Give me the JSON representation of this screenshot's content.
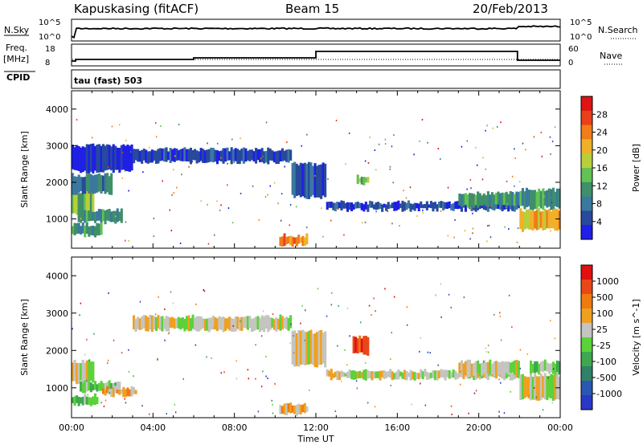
{
  "header": {
    "station": "Kapuskasing (fitACF)",
    "beam": "Beam 15",
    "date": "20/Feb/2013"
  },
  "panels": {
    "sky_label": "N.Sky",
    "sky_ticks": [
      "10^5",
      "10^0"
    ],
    "search_label": "N.Search",
    "search_ticks": [
      "10^5",
      "10^0"
    ],
    "freq_label_1": "Freq.",
    "freq_label_2": "[MHz]",
    "freq_ticks": [
      "18",
      "8"
    ],
    "nave_label": "Nave",
    "nave_ticks": [
      "60",
      "0"
    ],
    "cpid_label": "CPID",
    "cpid_value": "tau (fast) 503"
  },
  "colors": {
    "power": [
      "#1f1fe6",
      "#274a9c",
      "#3a78a0",
      "#3e8f6a",
      "#62c254",
      "#b8cf3c",
      "#f0b02a",
      "#f07d18",
      "#e8401a",
      "#dd1414"
    ],
    "velocity": [
      "#2a38c8",
      "#2958b0",
      "#30806a",
      "#3fa84e",
      "#5bd23a",
      "#c4c4c0",
      "#f0a020",
      "#ee7a10",
      "#e84818",
      "#e01010"
    ]
  },
  "chart_data": [
    {
      "type": "heatmap",
      "name": "power",
      "xlabel": "Time UT",
      "ylabel": "Slant Range [km]",
      "y_ticks": [
        "1000",
        "2000",
        "3000",
        "4000"
      ],
      "colorbar_label": "Power [dB]",
      "colorbar_ticks": [
        "4",
        "8",
        "12",
        "16",
        "20",
        "24",
        "28"
      ],
      "regions": [
        {
          "t0": 0.0,
          "t1": 1.1,
          "r0": 1100,
          "r1": 1750,
          "level": 4
        },
        {
          "t0": 0.0,
          "t1": 2.0,
          "r0": 1700,
          "r1": 2200,
          "level": 2
        },
        {
          "t0": 0.3,
          "t1": 2.5,
          "r0": 900,
          "r1": 1250,
          "level": 3
        },
        {
          "t0": 0.0,
          "t1": 1.5,
          "r0": 550,
          "r1": 850,
          "level": 3
        },
        {
          "t0": 0.0,
          "t1": 3.0,
          "r0": 2300,
          "r1": 3000,
          "level": 0
        },
        {
          "t0": 3.0,
          "t1": 10.8,
          "r0": 2550,
          "r1": 2900,
          "level": 1
        },
        {
          "t0": 10.8,
          "t1": 12.5,
          "r0": 1600,
          "r1": 2500,
          "level": 1
        },
        {
          "t0": 10.2,
          "t1": 11.6,
          "r0": 300,
          "r1": 550,
          "level": 7
        },
        {
          "t0": 12.5,
          "t1": 22.0,
          "r0": 1250,
          "r1": 1450,
          "level": 1
        },
        {
          "t0": 14.0,
          "t1": 14.6,
          "r0": 1950,
          "r1": 2150,
          "level": 4
        },
        {
          "t0": 19.0,
          "t1": 22.0,
          "r0": 1350,
          "r1": 1700,
          "level": 3
        },
        {
          "t0": 22.0,
          "t1": 24.0,
          "r0": 700,
          "r1": 1250,
          "level": 6
        },
        {
          "t0": 22.0,
          "t1": 24.0,
          "r0": 1300,
          "r1": 1800,
          "level": 3
        }
      ]
    },
    {
      "type": "heatmap",
      "name": "velocity",
      "xlabel": "Time UT",
      "ylabel": "Slant Range [km]",
      "y_ticks": [
        "1000",
        "2000",
        "3000",
        "4000"
      ],
      "colorbar_label": "Velocity [m s^-1]",
      "colorbar_ticks": [
        "1000",
        "500",
        "100",
        "25",
        "-25",
        "-100",
        "-500",
        "-1000"
      ],
      "x_ticks": [
        "00:00",
        "04:00",
        "08:00",
        "12:00",
        "16:00",
        "20:00",
        "00:00"
      ],
      "regions": [
        {
          "t0": 0.0,
          "t1": 1.1,
          "r0": 1150,
          "r1": 1700,
          "level": 5
        },
        {
          "t0": 0.4,
          "t1": 2.4,
          "r0": 900,
          "r1": 1150,
          "level": 4
        },
        {
          "t0": 0.0,
          "t1": 1.3,
          "r0": 550,
          "r1": 800,
          "level": 4
        },
        {
          "t0": 1.5,
          "t1": 3.2,
          "r0": 800,
          "r1": 1000,
          "level": 6
        },
        {
          "t0": 3.0,
          "t1": 10.8,
          "r0": 2550,
          "r1": 2900,
          "level": 5
        },
        {
          "t0": 10.8,
          "t1": 12.5,
          "r0": 1600,
          "r1": 2500,
          "level": 5
        },
        {
          "t0": 10.2,
          "t1": 11.6,
          "r0": 300,
          "r1": 550,
          "level": 6
        },
        {
          "t0": 13.8,
          "t1": 14.6,
          "r0": 1900,
          "r1": 2350,
          "level": 8
        },
        {
          "t0": 12.5,
          "t1": 22.0,
          "r0": 1250,
          "r1": 1450,
          "level": 5
        },
        {
          "t0": 19.0,
          "t1": 22.0,
          "r0": 1350,
          "r1": 1700,
          "level": 5
        },
        {
          "t0": 22.0,
          "t1": 24.0,
          "r0": 700,
          "r1": 1350,
          "level": 5
        },
        {
          "t0": 22.5,
          "t1": 24.0,
          "r0": 1400,
          "r1": 1700,
          "level": 4
        }
      ]
    }
  ]
}
